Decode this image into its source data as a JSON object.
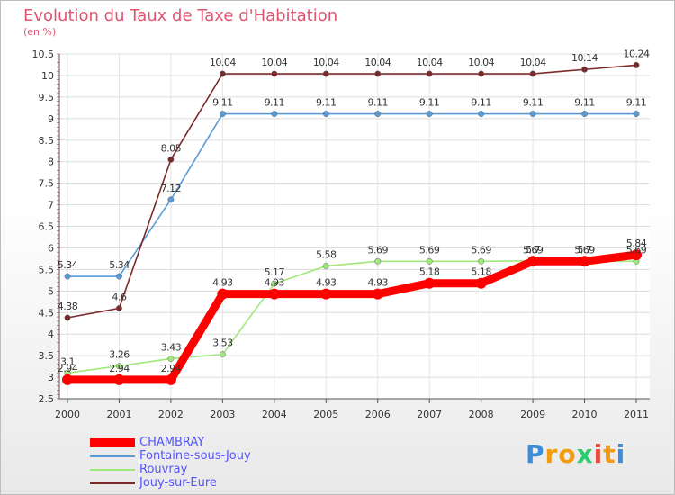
{
  "chart_data": {
    "type": "line",
    "title": "Evolution du Taux de Taxe d'Habitation",
    "ylabel": "(en %)",
    "xlabel": "",
    "x": [
      "2000",
      "2001",
      "2002",
      "2003",
      "2004",
      "2005",
      "2006",
      "2007",
      "2008",
      "2009",
      "2010",
      "2011"
    ],
    "ylim": [
      2.5,
      10.5
    ],
    "yticks": [
      "2.5",
      "3",
      "3.5",
      "4",
      "4.5",
      "5",
      "5.5",
      "6",
      "6.5",
      "7",
      "7.5",
      "8",
      "8.5",
      "9",
      "9.5",
      "10",
      "10.5"
    ],
    "series": [
      {
        "name": "CHAMBRAY",
        "color": "#ff0000",
        "values": [
          2.94,
          2.94,
          2.94,
          4.93,
          4.93,
          4.93,
          4.93,
          5.18,
          5.18,
          5.69,
          5.69,
          5.84
        ],
        "labels": [
          "2.94",
          "2.94",
          "2.94",
          "4.93",
          "4.93",
          "4.93",
          "4.93",
          "5.18",
          "5.18",
          "5.69",
          "5.69",
          "5.84"
        ]
      },
      {
        "name": "Fontaine-sous-Jouy",
        "color": "#5b9bd5",
        "values": [
          5.34,
          5.34,
          7.12,
          9.11,
          9.11,
          9.11,
          9.11,
          9.11,
          9.11,
          9.11,
          9.11,
          9.11
        ],
        "labels": [
          "5.34",
          "5.34",
          "7.12",
          "9.11",
          "9.11",
          "9.11",
          "9.11",
          "9.11",
          "9.11",
          "9.11",
          "9.11",
          "9.11"
        ]
      },
      {
        "name": "Rouvray",
        "color": "#9fe87a",
        "values": [
          3.1,
          3.26,
          3.43,
          3.53,
          5.17,
          5.58,
          5.69,
          5.69,
          5.69,
          5.7,
          5.7,
          5.69
        ],
        "labels": [
          "3.1",
          "3.26",
          "3.43",
          "3.53",
          "5.17",
          "5.58",
          "5.69",
          "5.69",
          "5.69",
          "5.7",
          "5.7",
          "5.69"
        ]
      },
      {
        "name": "Jouy-sur-Eure",
        "color": "#7b2a2a",
        "values": [
          4.38,
          4.6,
          8.05,
          10.04,
          10.04,
          10.04,
          10.04,
          10.04,
          10.04,
          10.04,
          10.14,
          10.24
        ],
        "labels": [
          "4.38",
          "4.6",
          "8.05",
          "10.04",
          "10.04",
          "10.04",
          "10.04",
          "10.04",
          "10.04",
          "10.04",
          "10.14",
          "10.24"
        ]
      }
    ],
    "legend_position": "bottom-left"
  },
  "brand": {
    "letters": [
      "P",
      "r",
      "o",
      "x",
      "i",
      "t",
      "i"
    ],
    "colors": [
      "#3a8fd8",
      "#f39c12",
      "#f39c12",
      "#2ecc71",
      "#e74c3c",
      "#f39c12",
      "#3a8fd8"
    ]
  }
}
